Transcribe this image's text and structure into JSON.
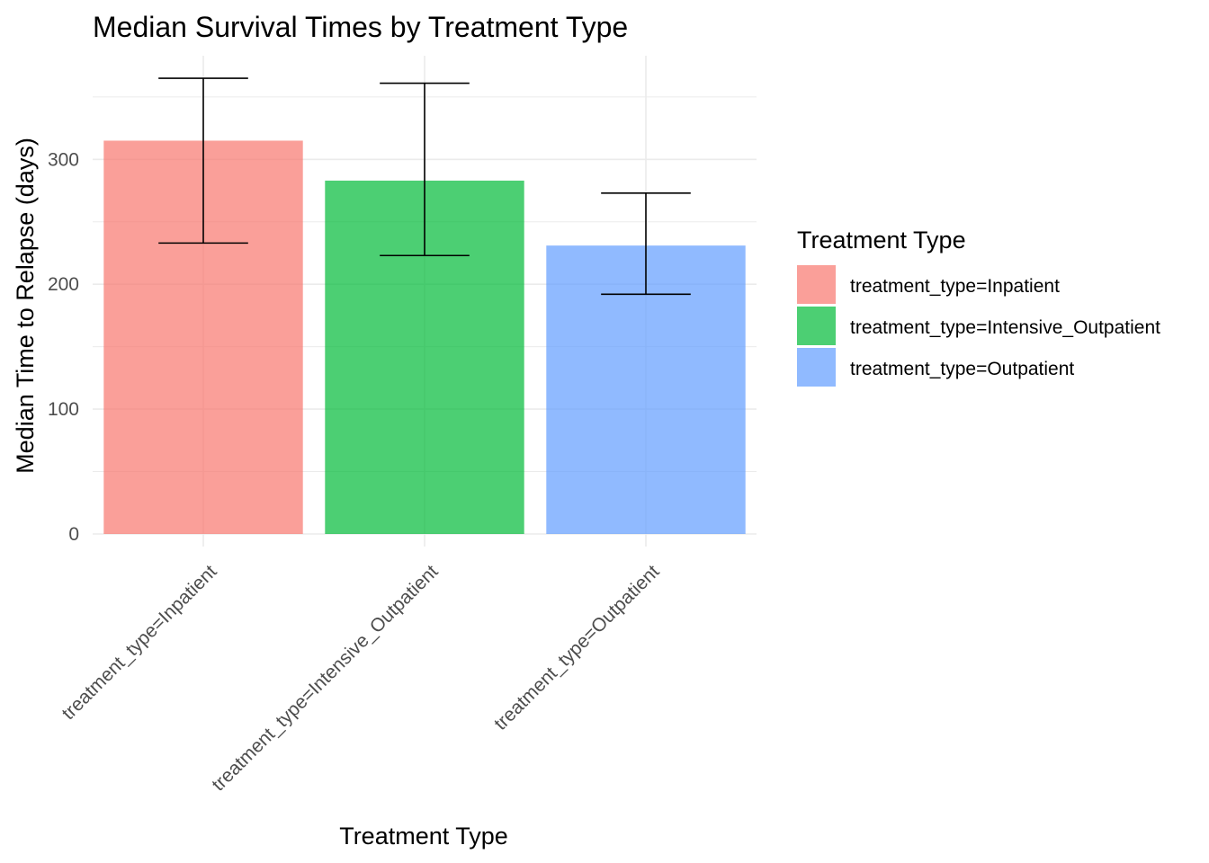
{
  "chart_data": {
    "type": "bar",
    "title": "Median Survival Times by Treatment Type",
    "xlabel": "Treatment Type",
    "ylabel": "Median Time to Relapse (days)",
    "categories": [
      "treatment_type=Inpatient",
      "treatment_type=Intensive_Outpatient",
      "treatment_type=Outpatient"
    ],
    "values": [
      315,
      283,
      231
    ],
    "error_lower": [
      233,
      223,
      192
    ],
    "error_upper": [
      365,
      361,
      273
    ],
    "colors": [
      "#F8766D",
      "#00BA38",
      "#619CFF"
    ],
    "bar_opacity": 0.7,
    "ylim": [
      0,
      380
    ],
    "yticks": [
      0,
      100,
      200,
      300
    ],
    "grid": true,
    "legend": {
      "title": "Treatment Type",
      "position": "right",
      "entries": [
        "treatment_type=Inpatient",
        "treatment_type=Intensive_Outpatient",
        "treatment_type=Outpatient"
      ]
    }
  }
}
